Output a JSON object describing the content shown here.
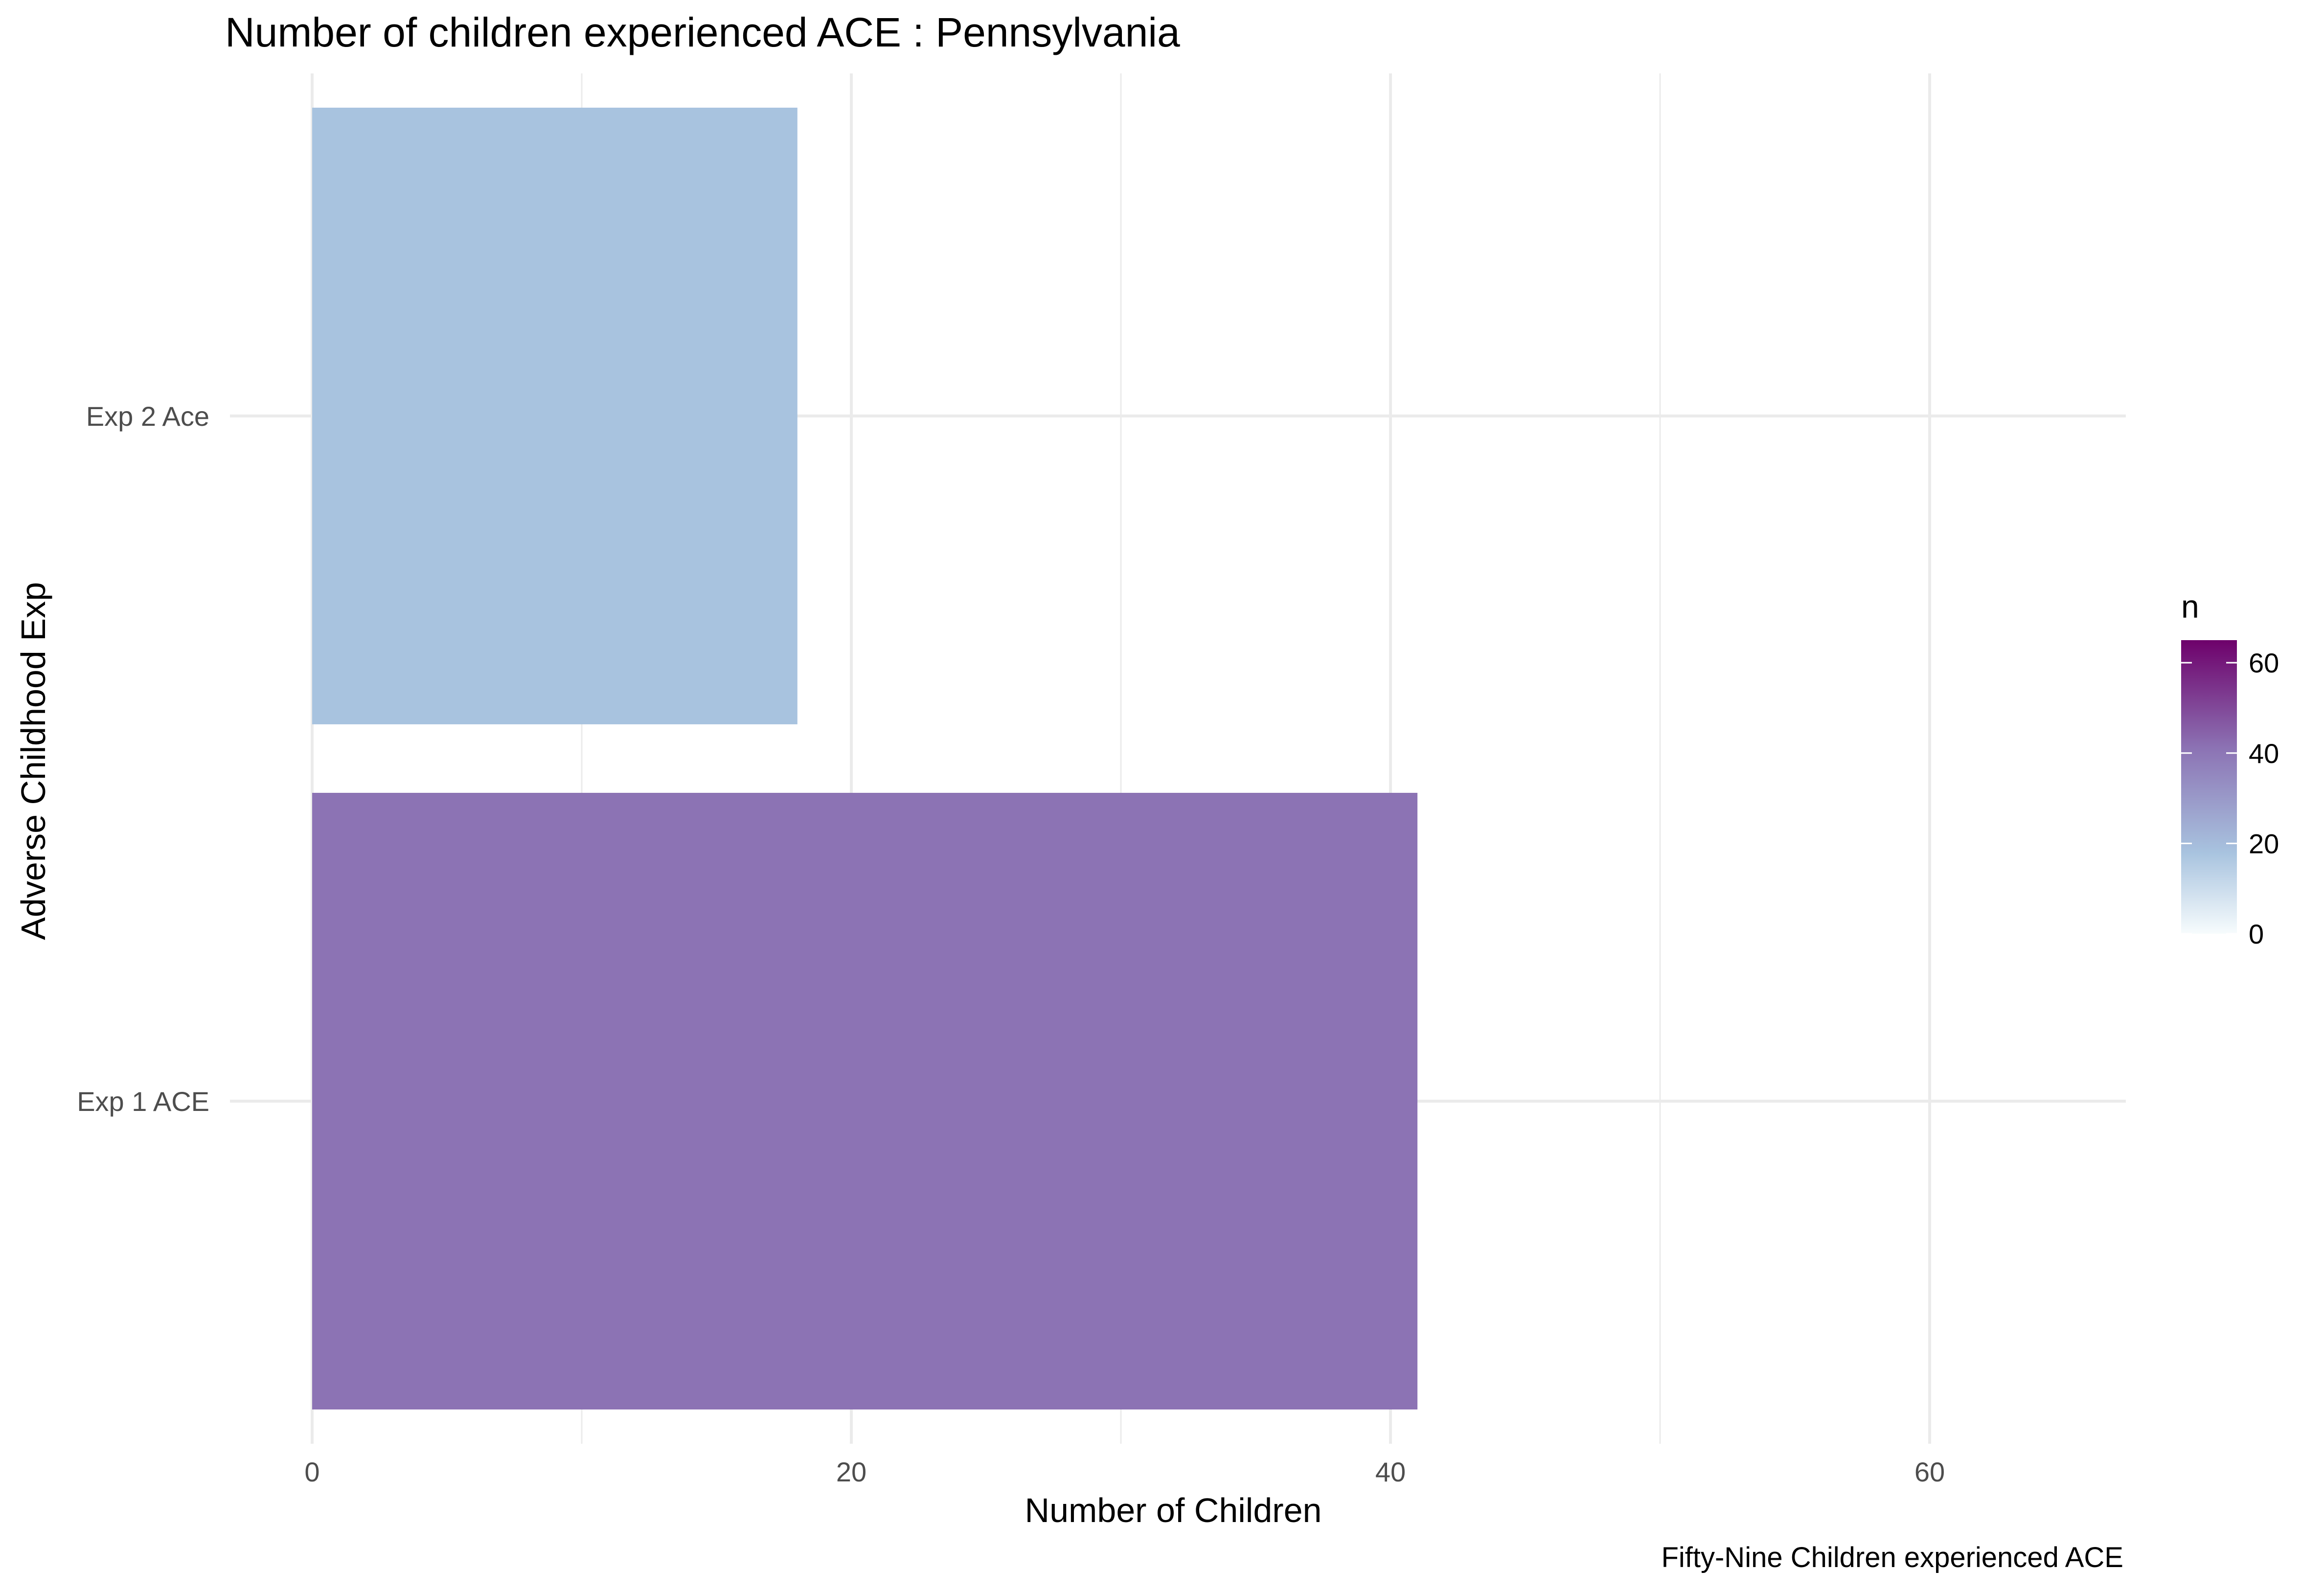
{
  "chart_data": {
    "type": "bar",
    "orientation": "horizontal",
    "title": "Number of children experienced ACE : Pennsylvania",
    "xlabel": "Number of Children",
    "ylabel": "Adverse Childhood Exp",
    "caption": "Fifty-Nine Children experienced ACE",
    "categories": [
      "Exp 1 ACE",
      "Exp 2 Ace"
    ],
    "values": [
      41,
      18
    ],
    "xlim": [
      0,
      66
    ],
    "x_ticks": [
      0,
      20,
      40,
      60
    ],
    "x_tick_labels": [
      "0",
      "20",
      "40",
      "60"
    ],
    "grid": true,
    "legend": {
      "title": "n",
      "type": "colorbar",
      "position": "right",
      "range": [
        0,
        65
      ],
      "ticks": [
        0,
        20,
        40,
        60
      ],
      "tick_labels": [
        "0",
        "20",
        "40",
        "60"
      ],
      "color_stops": [
        {
          "value": 0,
          "color": "#f7fcfd"
        },
        {
          "value": 18,
          "color": "#a8c3df"
        },
        {
          "value": 41,
          "color": "#8c73b4"
        },
        {
          "value": 65,
          "color": "#6e016b"
        }
      ]
    },
    "bar_colors": [
      "#8c73b4",
      "#a8c3df"
    ]
  }
}
